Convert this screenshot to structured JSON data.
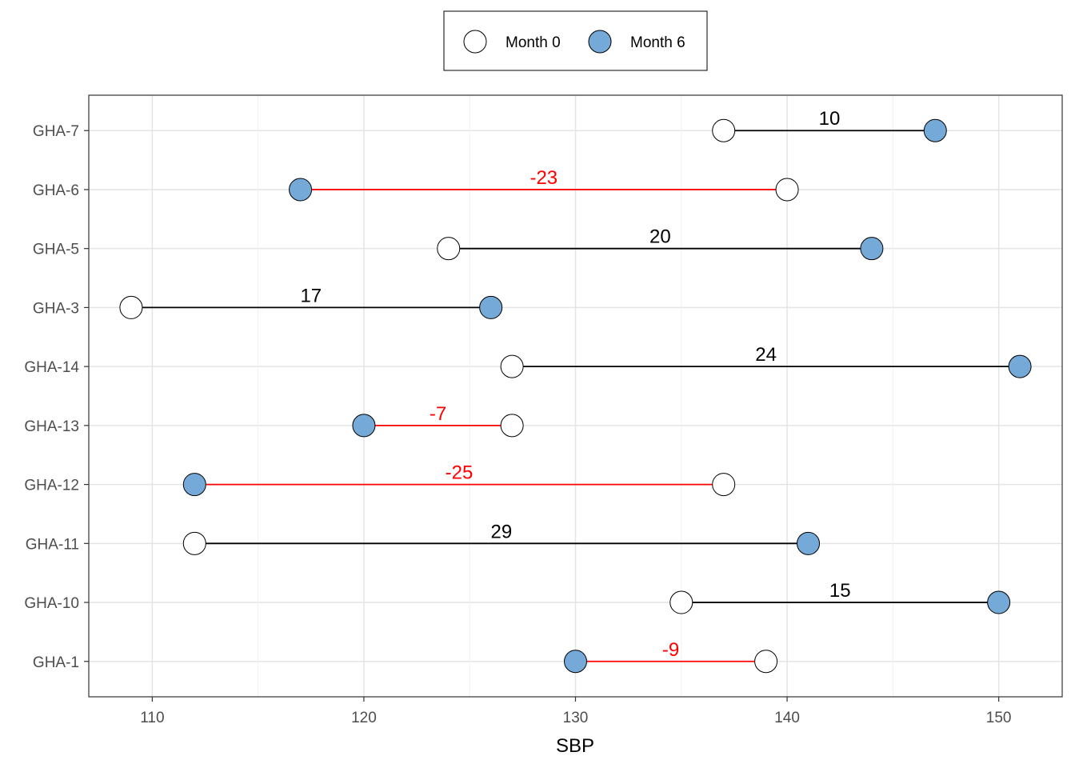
{
  "chart_data": {
    "type": "dumbbell",
    "xlabel": "SBP",
    "ylabel": "",
    "xlim": [
      107,
      153
    ],
    "xticks": [
      110,
      120,
      130,
      140,
      150
    ],
    "grid": true,
    "legend_position": "top",
    "legend": [
      {
        "name": "Month 0",
        "color": "#ffffff"
      },
      {
        "name": "Month 6",
        "color": "#74a9d8"
      }
    ],
    "colors": {
      "increase": "#000000",
      "decrease": "#ff0000"
    },
    "categories": [
      "GHA-1",
      "GHA-10",
      "GHA-11",
      "GHA-12",
      "GHA-13",
      "GHA-14",
      "GHA-3",
      "GHA-5",
      "GHA-6",
      "GHA-7"
    ],
    "month0": [
      139,
      135,
      112,
      137,
      127,
      127,
      109,
      124,
      140,
      137
    ],
    "month6": [
      130,
      150,
      141,
      112,
      120,
      151,
      126,
      144,
      117,
      147
    ],
    "diff_labels": [
      "-9",
      "15",
      "29",
      "-25",
      "-7",
      "24",
      "17",
      "20",
      "-23",
      "10"
    ]
  }
}
